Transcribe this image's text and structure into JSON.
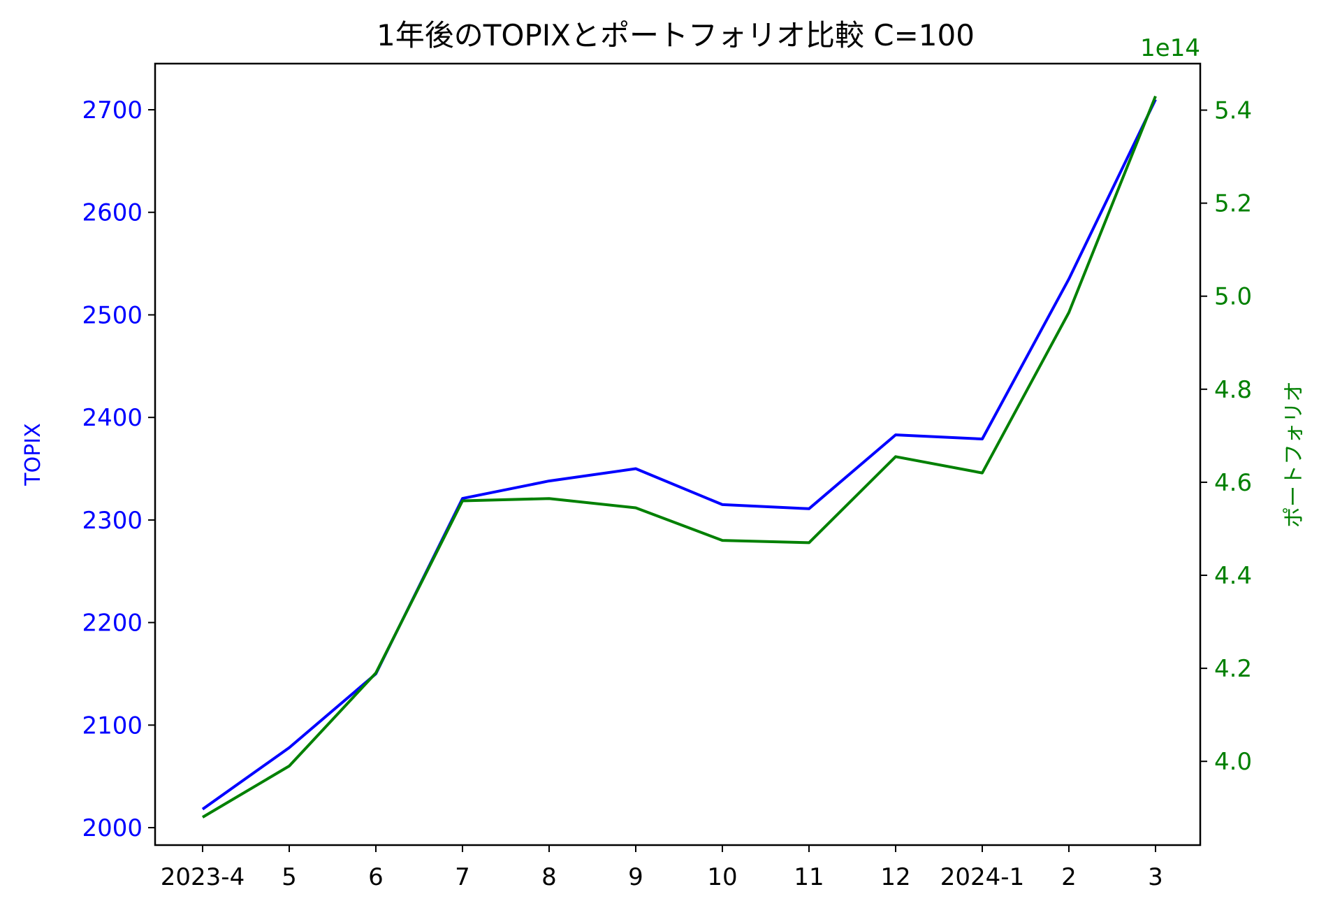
{
  "chart_data": {
    "type": "line",
    "title": "1年後のTOPIXとポートフォリオ比較 C=100",
    "categories": [
      "2023-4",
      "5",
      "6",
      "7",
      "8",
      "9",
      "10",
      "11",
      "12",
      "2024-1",
      "2",
      "3"
    ],
    "y_left": {
      "label": "TOPIX",
      "color": "#0000ff",
      "ticks": [
        2000,
        2100,
        2200,
        2300,
        2400,
        2500,
        2600,
        2700
      ],
      "ylim": [
        1983,
        2745
      ]
    },
    "y_right": {
      "label": "ポートフォリオ",
      "color": "#008000",
      "offset_label": "1e14",
      "ticks": [
        4.0,
        4.2,
        4.4,
        4.6,
        4.8,
        5.0,
        5.2,
        5.4
      ],
      "tick_labels": [
        "4.0",
        "4.2",
        "4.4",
        "4.6",
        "4.8",
        "5.0",
        "5.2",
        "5.4"
      ],
      "ylim": [
        3.82,
        5.5
      ]
    },
    "series": [
      {
        "name": "TOPIX",
        "axis": "left",
        "color": "#0000ff",
        "values": [
          2018,
          2078,
          2150,
          2321,
          2338,
          2350,
          2315,
          2311,
          2383,
          2379,
          2535,
          2710
        ]
      },
      {
        "name": "ポートフォリオ",
        "axis": "right",
        "color": "#008000",
        "values": [
          3.88,
          3.99,
          4.19,
          4.56,
          4.565,
          4.545,
          4.475,
          4.47,
          4.655,
          4.62,
          4.965,
          5.43
        ]
      }
    ],
    "grid": false
  }
}
